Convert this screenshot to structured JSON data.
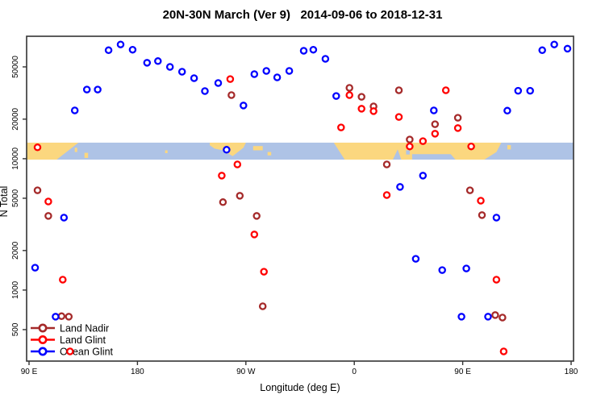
{
  "title": "20N-30N March (Ver 9)   2014-09-06 to 2018-12-31",
  "colors": {
    "land_nadir": "#A52A2A",
    "land_glint": "#FF0000",
    "ocean_glint": "#0000FF",
    "map_land": "#FBD77F",
    "map_ocean": "#AEC3E6",
    "axis": "#333333",
    "text": "#000000",
    "marker_fill": "#FFFFFF"
  },
  "chart_data": {
    "type": "scatter",
    "title": "20N-30N March (Ver 9)   2014-09-06 to 2018-12-31",
    "xlabel": "Longitude (deg E)",
    "ylabel": "N Total",
    "grid": false,
    "x_axis": {
      "range": [
        90,
        540
      ],
      "ticks": [
        90,
        180,
        270,
        360,
        450,
        540
      ],
      "tick_labels": [
        "90 E",
        "180",
        "90 W",
        "0",
        "90 E",
        "180"
      ]
    },
    "y_axis": {
      "scale": "log",
      "range": [
        288,
        85500
      ],
      "ticks": [
        500,
        1000,
        2000,
        5000,
        10000,
        20000,
        50000
      ],
      "tick_labels": [
        "500",
        "1000",
        "2000",
        "5000",
        "10000",
        "20000",
        "50000"
      ]
    },
    "legend": {
      "position": "bottom-left",
      "entries": [
        "Land Nadir",
        "Land Glint",
        "Ocean Glint"
      ]
    },
    "map_band": {
      "description": "world map strip of the 20N-30N latitude zone drawn across the plot",
      "value_range": [
        9840,
        13250
      ],
      "land_polygons": [
        [
          [
            88,
            0
          ],
          [
            131,
            0
          ],
          [
            122,
            0.5
          ],
          [
            113,
            1
          ],
          [
            88,
            1
          ]
        ],
        [
          [
            136,
            0.6
          ],
          [
            139,
            0.6
          ],
          [
            139,
            0.9
          ],
          [
            136,
            0.9
          ]
        ],
        [
          [
            128,
            0.3
          ],
          [
            130,
            0.3
          ],
          [
            130,
            0.55
          ],
          [
            128,
            0.55
          ]
        ],
        [
          [
            203,
            0.45
          ],
          [
            205,
            0.45
          ],
          [
            205,
            0.62
          ],
          [
            203,
            0.62
          ]
        ],
        [
          [
            240,
            0
          ],
          [
            270,
            0
          ],
          [
            268,
            0.3
          ],
          [
            259,
            0.8
          ],
          [
            251,
            0.45
          ],
          [
            244,
            0.35
          ],
          [
            240,
            0.15
          ]
        ],
        [
          [
            276,
            0.2
          ],
          [
            284,
            0.2
          ],
          [
            284,
            0.45
          ],
          [
            276,
            0.45
          ]
        ],
        [
          [
            288,
            0.55
          ],
          [
            291,
            0.55
          ],
          [
            291,
            0.75
          ],
          [
            288,
            0.75
          ]
        ],
        [
          [
            343,
            0
          ],
          [
            482,
            0
          ],
          [
            478,
            0.55
          ],
          [
            468,
            1
          ],
          [
            352,
            1
          ]
        ],
        [
          [
            487,
            0.15
          ],
          [
            490,
            0.15
          ],
          [
            490,
            0.4
          ],
          [
            487,
            0.4
          ]
        ]
      ],
      "sea_overlays": [
        [
          [
            392,
            1
          ],
          [
            396,
            0.4
          ],
          [
            399,
            1
          ]
        ],
        [
          [
            403,
            0.45
          ],
          [
            406,
            0.45
          ],
          [
            406,
            0.7
          ],
          [
            403,
            0.7
          ]
        ],
        [
          [
            408,
            0.68
          ],
          [
            440,
            0.68
          ],
          [
            444,
            1
          ],
          [
            408,
            1
          ]
        ]
      ]
    },
    "series": [
      {
        "name": "Land Nadir",
        "color": "#A52A2A",
        "points": [
          [
            97,
            5750
          ],
          [
            106,
            3670
          ],
          [
            117,
            633
          ],
          [
            123,
            627
          ],
          [
            251,
            4670
          ],
          [
            258,
            30500
          ],
          [
            265,
            5220
          ],
          [
            279,
            3670
          ],
          [
            284,
            753
          ],
          [
            356,
            34600
          ],
          [
            366,
            29600
          ],
          [
            376,
            25000
          ],
          [
            387,
            9050
          ],
          [
            397,
            33200
          ],
          [
            406,
            14000
          ],
          [
            427,
            18300
          ],
          [
            446,
            20500
          ],
          [
            456,
            5750
          ],
          [
            466,
            3720
          ],
          [
            477,
            645
          ],
          [
            483,
            618
          ]
        ]
      },
      {
        "name": "Land Glint",
        "color": "#FF0000",
        "points": [
          [
            97,
            12200
          ],
          [
            106,
            4720
          ],
          [
            118,
            1200
          ],
          [
            124,
            341
          ],
          [
            250,
            7430
          ],
          [
            257,
            40400
          ],
          [
            263,
            9050
          ],
          [
            277,
            2650
          ],
          [
            285,
            1380
          ],
          [
            349,
            17300
          ],
          [
            356,
            30500
          ],
          [
            366,
            24000
          ],
          [
            376,
            23000
          ],
          [
            387,
            5290
          ],
          [
            397,
            20800
          ],
          [
            406,
            12400
          ],
          [
            417,
            13600
          ],
          [
            427,
            15500
          ],
          [
            436,
            33200
          ],
          [
            446,
            17100
          ],
          [
            457,
            12400
          ],
          [
            465,
            4790
          ],
          [
            478,
            1200
          ],
          [
            484,
            341
          ]
        ]
      },
      {
        "name": "Ocean Glint",
        "color": "#0000FF",
        "points": [
          [
            95,
            1480
          ],
          [
            112,
            627
          ],
          [
            119,
            3560
          ],
          [
            128,
            23300
          ],
          [
            138,
            33600
          ],
          [
            147,
            33600
          ],
          [
            156,
            67000
          ],
          [
            166,
            74000
          ],
          [
            176,
            67500
          ],
          [
            188,
            53700
          ],
          [
            197,
            55300
          ],
          [
            207,
            50000
          ],
          [
            217,
            45900
          ],
          [
            227,
            41000
          ],
          [
            236,
            32700
          ],
          [
            247,
            37700
          ],
          [
            254,
            11700
          ],
          [
            268,
            25400
          ],
          [
            277,
            44000
          ],
          [
            287,
            46600
          ],
          [
            296,
            41600
          ],
          [
            306,
            46600
          ],
          [
            318,
            66300
          ],
          [
            326,
            67500
          ],
          [
            336,
            57600
          ],
          [
            345,
            30000
          ],
          [
            398,
            6100
          ],
          [
            411,
            1730
          ],
          [
            417,
            7430
          ],
          [
            426,
            23300
          ],
          [
            433,
            1420
          ],
          [
            449,
            627
          ],
          [
            453,
            1460
          ],
          [
            471,
            627
          ],
          [
            478,
            3560
          ],
          [
            487,
            23200
          ],
          [
            496,
            32900
          ],
          [
            506,
            32900
          ],
          [
            516,
            67000
          ],
          [
            526,
            74000
          ],
          [
            537,
            68800
          ]
        ]
      }
    ]
  }
}
